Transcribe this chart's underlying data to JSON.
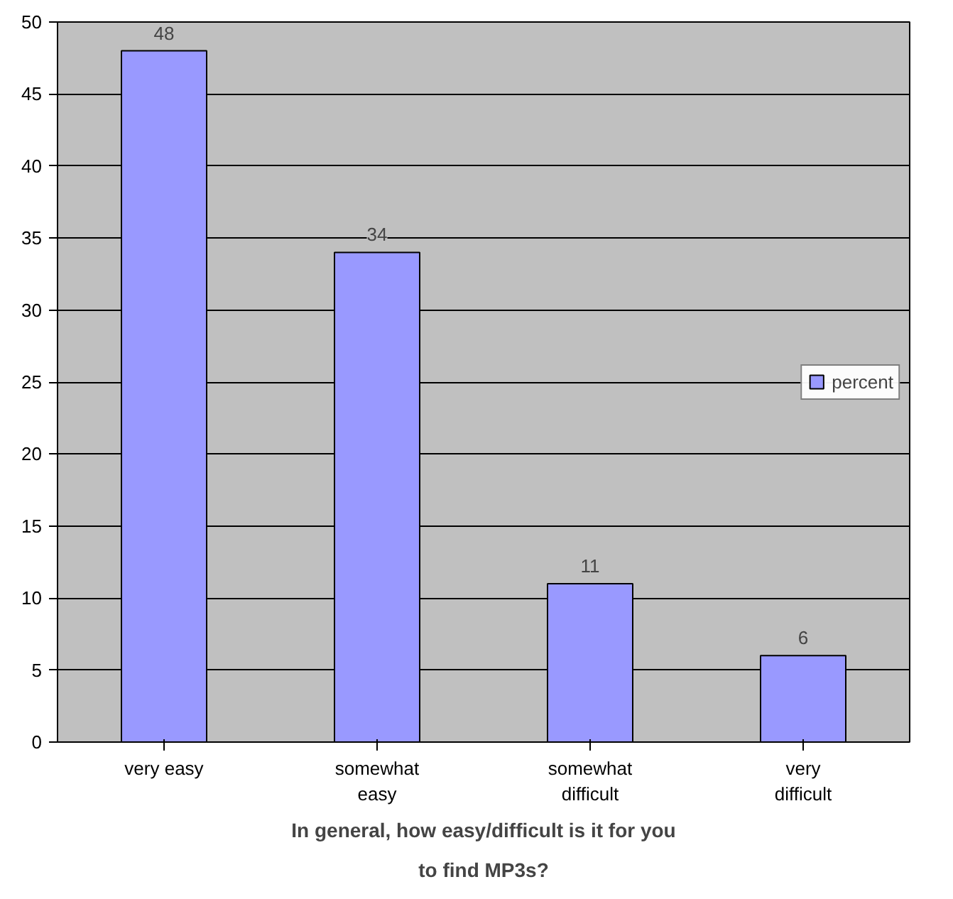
{
  "chart_data": {
    "type": "bar",
    "title": "In general, how easy/difficult is it for you to find MP3s?",
    "categories": [
      "very easy",
      "somewhat easy",
      "somewhat difficult",
      "very difficult"
    ],
    "series": [
      {
        "name": "percent",
        "color": "#9999ff",
        "values": [
          48,
          34,
          11,
          6
        ]
      }
    ],
    "ylim": [
      0,
      50
    ],
    "yticks": [
      0,
      5,
      10,
      15,
      20,
      25,
      30,
      35,
      40,
      45,
      50
    ],
    "grid": "y",
    "legend": "right",
    "data_labels": true
  }
}
